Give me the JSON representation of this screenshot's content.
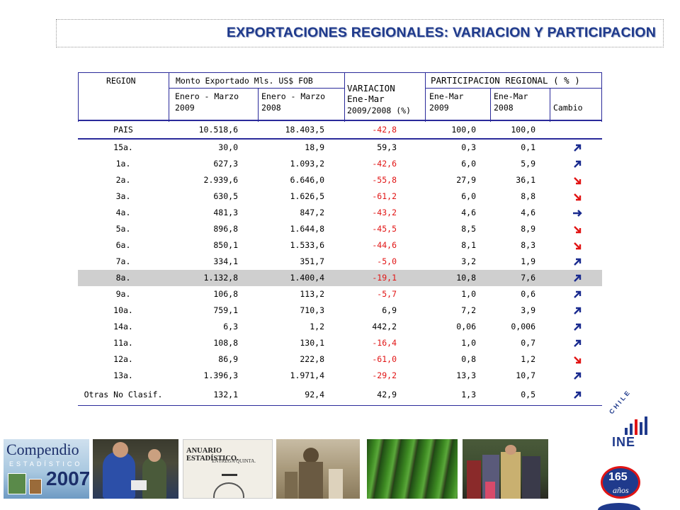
{
  "title": "EXPORTACIONES REGIONALES:  VARIACION Y PARTICIPACION",
  "headers": {
    "region": "REGION",
    "monto": "Monto Exportado Mls. US$ FOB",
    "enero_1": "Enero  -  Marzo",
    "y2009": "2009",
    "enero_2": "Enero  -  Marzo",
    "y2008": "2008",
    "var_1": "VARIACION",
    "var_2": "Ene-Mar",
    "var_3": "2009/2008  (%)",
    "participacion": "PARTICIPACION REGIONAL ( % )",
    "enemar_1": "Ene-Mar",
    "p2009": "2009",
    "enemar_2": "Ene-Mar",
    "p2008": "2008",
    "cambio": "Cambio"
  },
  "rows": [
    {
      "region": "PAIS",
      "m09": "10.518,6",
      "m08": "18.403,5",
      "var": "-42,8",
      "neg": true,
      "p09": "100,0",
      "p08": "100,0",
      "arrow": ""
    },
    {
      "region": "15a.",
      "m09": "30,0",
      "m08": "18,9",
      "var": "59,3",
      "neg": false,
      "p09": "0,3",
      "p08": "0,1",
      "arrow": "up"
    },
    {
      "region": "1a.",
      "m09": "627,3",
      "m08": "1.093,2",
      "var": "-42,6",
      "neg": true,
      "p09": "6,0",
      "p08": "5,9",
      "arrow": "up"
    },
    {
      "region": "2a.",
      "m09": "2.939,6",
      "m08": "6.646,0",
      "var": "-55,8",
      "neg": true,
      "p09": "27,9",
      "p08": "36,1",
      "arrow": "down"
    },
    {
      "region": "3a.",
      "m09": "630,5",
      "m08": "1.626,5",
      "var": "-61,2",
      "neg": true,
      "p09": "6,0",
      "p08": "8,8",
      "arrow": "down"
    },
    {
      "region": "4a.",
      "m09": "481,3",
      "m08": "847,2",
      "var": "-43,2",
      "neg": true,
      "p09": "4,6",
      "p08": "4,6",
      "arrow": "right"
    },
    {
      "region": "5a.",
      "m09": "896,8",
      "m08": "1.644,8",
      "var": "-45,5",
      "neg": true,
      "p09": "8,5",
      "p08": "8,9",
      "arrow": "down"
    },
    {
      "region": "6a.",
      "m09": "850,1",
      "m08": "1.533,6",
      "var": "-44,6",
      "neg": true,
      "p09": "8,1",
      "p08": "8,3",
      "arrow": "down"
    },
    {
      "region": "7a.",
      "m09": "334,1",
      "m08": "351,7",
      "var": "-5,0",
      "neg": true,
      "p09": "3,2",
      "p08": "1,9",
      "arrow": "up"
    },
    {
      "region": "8a.",
      "m09": "1.132,8",
      "m08": "1.400,4",
      "var": "-19,1",
      "neg": true,
      "p09": "10,8",
      "p08": "7,6",
      "arrow": "up",
      "highlight": true
    },
    {
      "region": "9a.",
      "m09": "106,8",
      "m08": "113,2",
      "var": "-5,7",
      "neg": true,
      "p09": "1,0",
      "p08": "0,6",
      "arrow": "up"
    },
    {
      "region": "10a.",
      "m09": "759,1",
      "m08": "710,3",
      "var": "6,9",
      "neg": false,
      "p09": "7,2",
      "p08": "3,9",
      "arrow": "up"
    },
    {
      "region": "14a.",
      "m09": "6,3",
      "m08": "1,2",
      "var": "442,2",
      "neg": false,
      "p09": "0,06",
      "p08": "0,006",
      "arrow": "up"
    },
    {
      "region": "11a.",
      "m09": "108,8",
      "m08": "130,1",
      "var": "-16,4",
      "neg": true,
      "p09": "1,0",
      "p08": "0,7",
      "arrow": "up"
    },
    {
      "region": "12a.",
      "m09": "86,9",
      "m08": "222,8",
      "var": "-61,0",
      "neg": true,
      "p09": "0,8",
      "p08": "1,2",
      "arrow": "down"
    },
    {
      "region": "13a.",
      "m09": "1.396,3",
      "m08": "1.971,4",
      "var": "-29,2",
      "neg": true,
      "p09": "13,3",
      "p08": "10,7",
      "arrow": "up"
    },
    {
      "region": "Otras No Clasif.",
      "m09": "132,1",
      "m08": "92,4",
      "var": "42,9",
      "neg": false,
      "p09": "1,3",
      "p08": "0,5",
      "arrow": "up"
    }
  ],
  "colors": {
    "title": "#1f3a8c",
    "negative": "#e11414",
    "arrow_up": "#1a2b8f",
    "arrow_down": "#e11414",
    "arrow_right": "#1a2b8f",
    "highlight_row": "#cfcfcf",
    "grid": "#2a2a9a"
  },
  "footer": {
    "compendio_line1": "Compendio",
    "compendio_line2": "ESTADÍSTICO",
    "compendio_year": "2007",
    "anuario_title": "ANUARIO ESTADÍSTICO.",
    "anuario_sub": "ENTREGA QUINTA.",
    "ine_country": "CHILE",
    "ine_name": "INE",
    "ine_years": "165",
    "ine_anos": "años"
  }
}
